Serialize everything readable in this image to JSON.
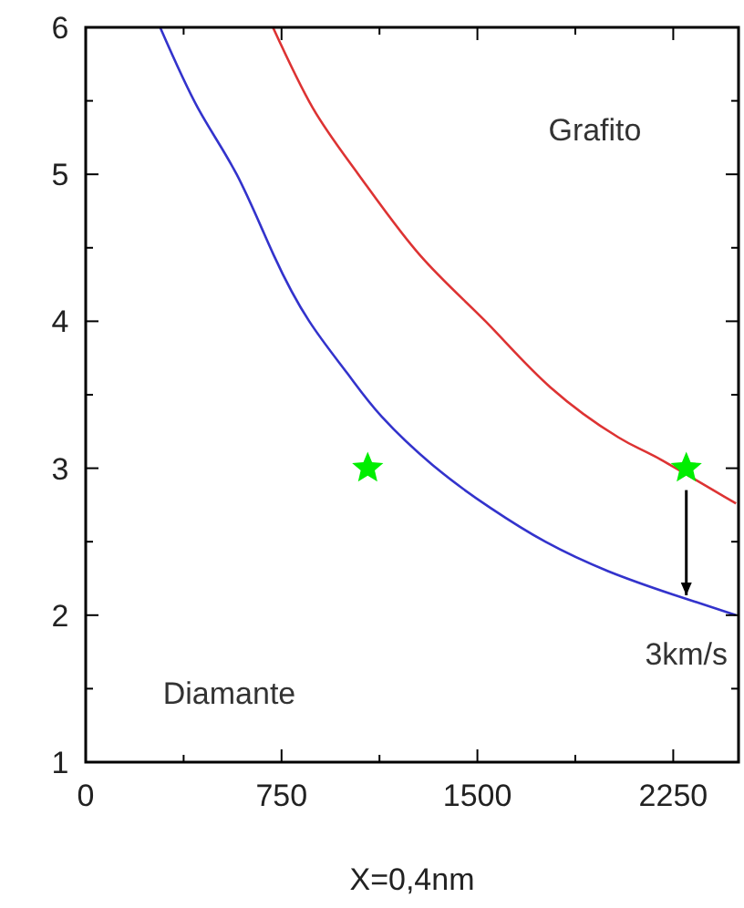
{
  "chart_data": {
    "type": "line",
    "xlabel": "X=0,4nm",
    "xlim": [
      0,
      2500
    ],
    "ylim": [
      1,
      6
    ],
    "xticks": [
      0,
      {
        "value": 375,
        "label": null
      },
      750,
      {
        "value": 1125,
        "label": null
      },
      1500,
      {
        "value": 1875,
        "label": null
      },
      2250
    ],
    "yticks": [
      1,
      {
        "value": 1.5,
        "label": null
      },
      2,
      {
        "value": 2.5,
        "label": null
      },
      3,
      {
        "value": 3.5,
        "label": null
      },
      4,
      {
        "value": 4.5,
        "label": null
      },
      5,
      {
        "value": 5.5,
        "label": null
      },
      6
    ],
    "grid": false,
    "series": [
      {
        "color": "#3333cc",
        "marker": "none",
        "x": [
          285,
          430,
          578,
          720,
          856,
          1000,
          1134,
          1343,
          1550,
          1760,
          2000,
          2250,
          2490
        ],
        "values": [
          6,
          5.45,
          5,
          4.45,
          4,
          3.65,
          3.35,
          3,
          2.73,
          2.5,
          2.3,
          2.14,
          2
        ]
      },
      {
        "color": "#dd3333",
        "marker": "none",
        "x": [
          717,
          870,
          1044,
          1280,
          1531,
          1780,
          2040,
          2180,
          2490
        ],
        "values": [
          6,
          5.45,
          5,
          4.45,
          4,
          3.55,
          3.21,
          3.08,
          2.76
        ]
      },
      {
        "type": "scatter",
        "color": "#00ee00",
        "marker": "star",
        "x": [
          1080,
          2300
        ],
        "values": [
          3,
          3
        ]
      }
    ],
    "annotations": [
      "Grafito",
      "Diamante",
      "3km/s"
    ]
  }
}
